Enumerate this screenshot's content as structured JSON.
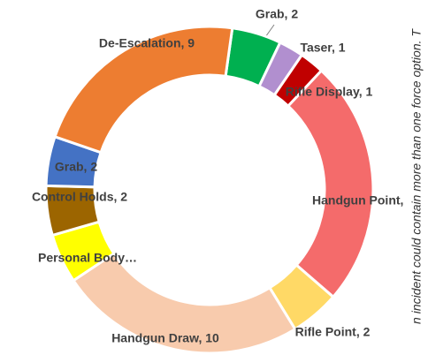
{
  "chart_data": {
    "type": "donut",
    "values": [
      2,
      1,
      1,
      10,
      2,
      10,
      2,
      2,
      2,
      9
    ],
    "value_labels": [
      "Grab, 2",
      "Taser, 1",
      "Rifle Display, 1",
      "Handgun Point,",
      "Rifle Point, 2",
      "Handgun Draw, 10",
      "Personal Body…",
      "Control Holds, 2",
      "Grab, 2",
      "De-Escalation, 9"
    ],
    "colors": [
      "#00b050",
      "#b18fcf",
      "#c00000",
      "#f46b6b",
      "#ffd966",
      "#f8cbad",
      "#ffff00",
      "#9c6500",
      "#4472c4",
      "#ed7d31"
    ],
    "annotation": "n incident could contain more than one force option. T"
  }
}
